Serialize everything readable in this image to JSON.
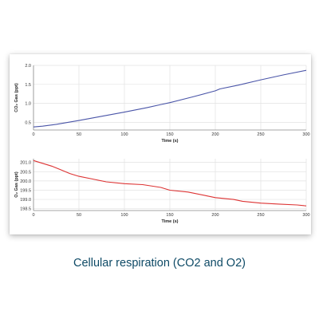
{
  "caption": "Cellular respiration (CO2 and O2)",
  "chart_data": [
    {
      "type": "line",
      "xlabel": "Time (s)",
      "ylabel": "CO₂ Gas (ppt)",
      "xlim": [
        0,
        300
      ],
      "ylim": [
        0.3,
        2.0
      ],
      "x_ticks": [
        0,
        50,
        100,
        150,
        200,
        250,
        300
      ],
      "y_ticks": [
        0.5,
        1.0,
        1.5,
        2.0
      ],
      "y_tick_labels": [
        "0.5",
        "1.0",
        "1.5",
        "2.0"
      ],
      "grid": true,
      "color": "#4a55a8",
      "series": [
        {
          "x": [
            0,
            10,
            25,
            50,
            75,
            100,
            125,
            140,
            150,
            175,
            200,
            205,
            225,
            250,
            275,
            300
          ],
          "y": [
            0.38,
            0.4,
            0.45,
            0.55,
            0.66,
            0.77,
            0.89,
            0.97,
            1.02,
            1.17,
            1.33,
            1.38,
            1.48,
            1.62,
            1.75,
            1.87
          ]
        }
      ]
    },
    {
      "type": "line",
      "xlabel": "Time (s)",
      "ylabel": "O₂ Gas (ppt)",
      "xlim": [
        0,
        300
      ],
      "ylim": [
        198.4,
        201.2
      ],
      "x_ticks": [
        0,
        50,
        100,
        150,
        200,
        250,
        300
      ],
      "y_ticks": [
        198.5,
        199.0,
        199.5,
        200.0,
        200.5,
        201.0
      ],
      "y_tick_labels": [
        "198.5",
        "199.0",
        "199.5",
        "200.0",
        "200.5",
        "201.0"
      ],
      "grid": true,
      "color": "#dd3333",
      "series": [
        {
          "x": [
            0,
            10,
            20,
            30,
            40,
            50,
            65,
            80,
            100,
            120,
            140,
            150,
            170,
            190,
            200,
            220,
            230,
            250,
            270,
            290,
            300
          ],
          "y": [
            201.1,
            200.95,
            200.8,
            200.6,
            200.4,
            200.25,
            200.1,
            199.95,
            199.85,
            199.8,
            199.65,
            199.5,
            199.4,
            199.2,
            199.1,
            199.0,
            198.9,
            198.8,
            198.75,
            198.7,
            198.65
          ]
        }
      ]
    }
  ]
}
